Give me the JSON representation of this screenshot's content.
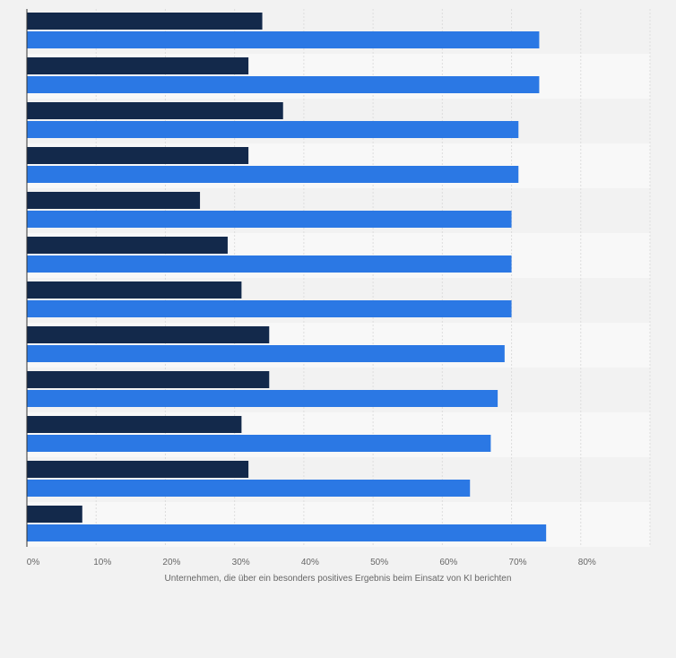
{
  "chart_data": {
    "type": "bar",
    "orientation": "horizontal",
    "categories": [
      "",
      "",
      "",
      "",
      "",
      "",
      "",
      "",
      "",
      "",
      "",
      ""
    ],
    "series": [
      {
        "color": "#13294b",
        "values": [
          34,
          32,
          37,
          32,
          25,
          29,
          31,
          35,
          35,
          31,
          32,
          8
        ]
      },
      {
        "color": "#2b78e4",
        "values": [
          74,
          74,
          71,
          71,
          70,
          70,
          70,
          69,
          68,
          67,
          64,
          75
        ]
      }
    ],
    "xlabel": "Unternehmen, die über ein besonders positives Ergebnis beim Einsatz von KI berichten",
    "ylabel": "",
    "xlim": [
      0,
      90
    ],
    "x_ticks": [
      0,
      10,
      20,
      30,
      40,
      50,
      60,
      70,
      80
    ],
    "x_tick_labels": [
      "0%",
      "10%",
      "20%",
      "30%",
      "40%",
      "50%",
      "60%",
      "70%",
      "80%"
    ],
    "grid": true,
    "band_colors": [
      "#f2f2f2",
      "#f8f8f8"
    ]
  }
}
